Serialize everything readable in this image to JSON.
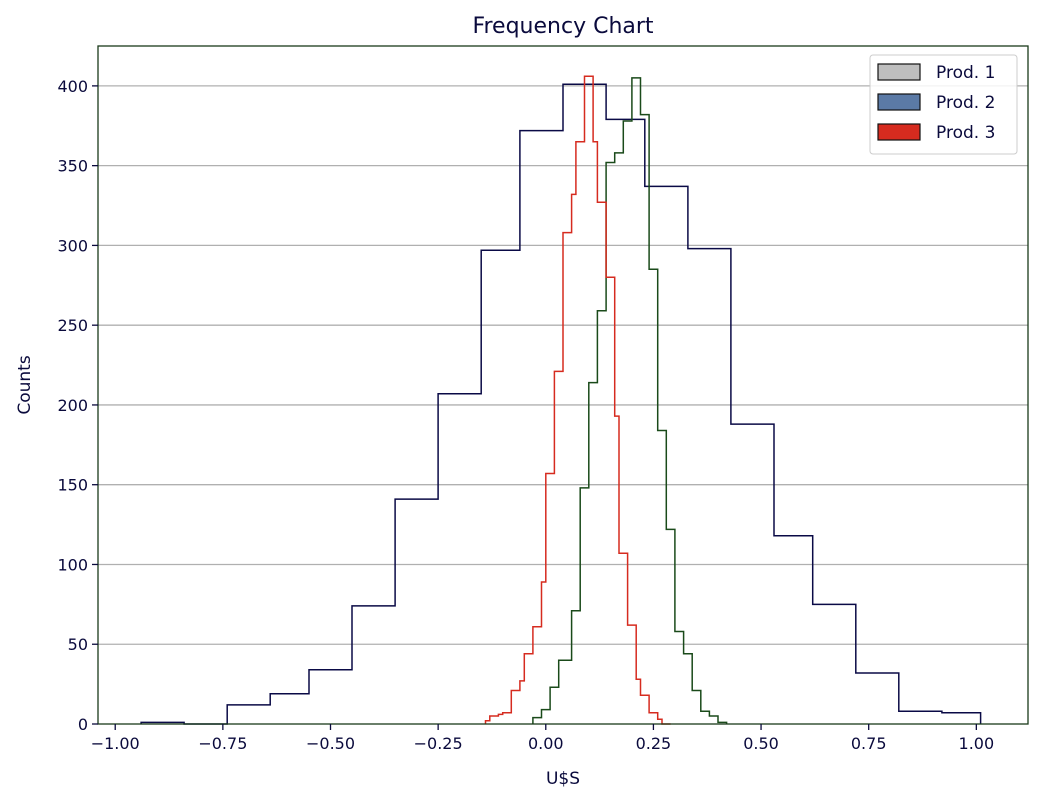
{
  "chart_data": {
    "type": "step-histogram",
    "title": "Frequency Chart",
    "xlabel": "U$S",
    "ylabel": "Counts",
    "xlim": [
      -1.04,
      1.12
    ],
    "ylim": [
      0,
      425
    ],
    "xticks": [
      -1.0,
      -0.75,
      -0.5,
      -0.25,
      0.0,
      0.25,
      0.5,
      0.75,
      1.0
    ],
    "xtick_labels": [
      "−1.00",
      "−0.75",
      "−0.50",
      "−0.25",
      "0.00",
      "0.25",
      "0.50",
      "0.75",
      "1.00"
    ],
    "yticks": [
      0,
      50,
      100,
      150,
      200,
      250,
      300,
      350,
      400
    ],
    "ytick_labels": [
      "0",
      "50",
      "100",
      "150",
      "200",
      "250",
      "300",
      "350",
      "400"
    ],
    "grid": "horizontal",
    "legend_position": "top-right",
    "legend": [
      {
        "label": "Prod. 1",
        "color": "#bebebe"
      },
      {
        "label": "Prod. 2",
        "color": "#5b7aa6"
      },
      {
        "label": "Prod. 3",
        "color": "#d62b1f"
      }
    ],
    "series": [
      {
        "name": "Prod. 2",
        "color": "#0a0a46",
        "edges": [
          -0.94,
          -0.84,
          -0.74,
          -0.64,
          -0.55,
          -0.45,
          -0.35,
          -0.25,
          -0.15,
          -0.06,
          0.04,
          0.14,
          0.23,
          0.33,
          0.43,
          0.53,
          0.62,
          0.72,
          0.82,
          0.92,
          1.01
        ],
        "counts": [
          1,
          0,
          12,
          19,
          34,
          74,
          141,
          207,
          297,
          372,
          401,
          379,
          337,
          298,
          188,
          118,
          75,
          32,
          8,
          7
        ]
      },
      {
        "name": "Prod. 1",
        "color": "#1a4a1a",
        "edges": [
          -0.03,
          -0.01,
          0.01,
          0.03,
          0.06,
          0.08,
          0.1,
          0.12,
          0.14,
          0.16,
          0.18,
          0.2,
          0.22,
          0.24,
          0.26,
          0.28,
          0.3,
          0.32,
          0.34,
          0.36,
          0.38,
          0.4,
          0.42
        ],
        "counts": [
          4,
          9,
          23,
          40,
          71,
          148,
          214,
          259,
          352,
          358,
          378,
          405,
          382,
          285,
          184,
          122,
          58,
          44,
          21,
          8,
          5,
          1
        ]
      },
      {
        "name": "Prod. 3",
        "color": "#d62b1f",
        "edges": [
          -0.14,
          -0.13,
          -0.11,
          -0.1,
          -0.08,
          -0.06,
          -0.05,
          -0.03,
          -0.01,
          0.0,
          0.02,
          0.04,
          0.06,
          0.07,
          0.09,
          0.11,
          0.12,
          0.14,
          0.16,
          0.17,
          0.19,
          0.21,
          0.22,
          0.24,
          0.26,
          0.27,
          0.29
        ],
        "counts": [
          2,
          5,
          6,
          7,
          21,
          27,
          44,
          61,
          89,
          157,
          221,
          308,
          332,
          365,
          406,
          365,
          327,
          280,
          193,
          107,
          62,
          28,
          18,
          7,
          3,
          0
        ]
      }
    ]
  }
}
